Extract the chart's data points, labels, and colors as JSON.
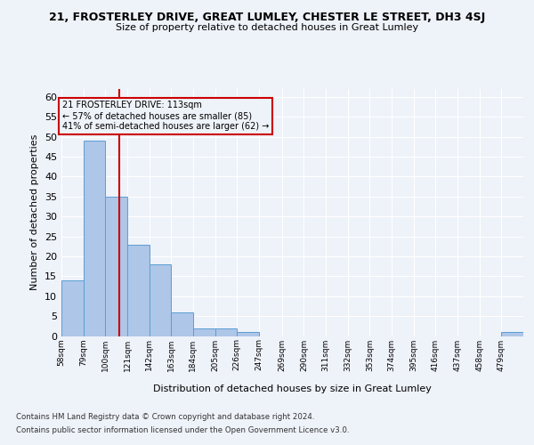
{
  "title": "21, FROSTERLEY DRIVE, GREAT LUMLEY, CHESTER LE STREET, DH3 4SJ",
  "subtitle": "Size of property relative to detached houses in Great Lumley",
  "xlabel": "Distribution of detached houses by size in Great Lumley",
  "ylabel": "Number of detached properties",
  "bin_labels": [
    "58sqm",
    "79sqm",
    "100sqm",
    "121sqm",
    "142sqm",
    "163sqm",
    "184sqm",
    "205sqm",
    "226sqm",
    "247sqm",
    "269sqm",
    "290sqm",
    "311sqm",
    "332sqm",
    "353sqm",
    "374sqm",
    "395sqm",
    "416sqm",
    "437sqm",
    "458sqm",
    "479sqm"
  ],
  "bin_edges": [
    58,
    79,
    100,
    121,
    142,
    163,
    184,
    205,
    226,
    247,
    269,
    290,
    311,
    332,
    353,
    374,
    395,
    416,
    437,
    458,
    479,
    500
  ],
  "bar_values": [
    14,
    49,
    35,
    23,
    18,
    6,
    2,
    2,
    1,
    0,
    0,
    0,
    0,
    0,
    0,
    0,
    0,
    0,
    0,
    0,
    1
  ],
  "bar_color": "#aec6e8",
  "bar_edgecolor": "#5a9fd4",
  "property_size": 113,
  "red_line_color": "#cc0000",
  "annotation_line1": "21 FROSTERLEY DRIVE: 113sqm",
  "annotation_line2": "← 57% of detached houses are smaller (85)",
  "annotation_line3": "41% of semi-detached houses are larger (62) →",
  "annotation_box_edgecolor": "#cc0000",
  "ylim": [
    0,
    62
  ],
  "yticks": [
    0,
    5,
    10,
    15,
    20,
    25,
    30,
    35,
    40,
    45,
    50,
    55,
    60
  ],
  "footer1": "Contains HM Land Registry data © Crown copyright and database right 2024.",
  "footer2": "Contains public sector information licensed under the Open Government Licence v3.0.",
  "background_color": "#eef2f9"
}
